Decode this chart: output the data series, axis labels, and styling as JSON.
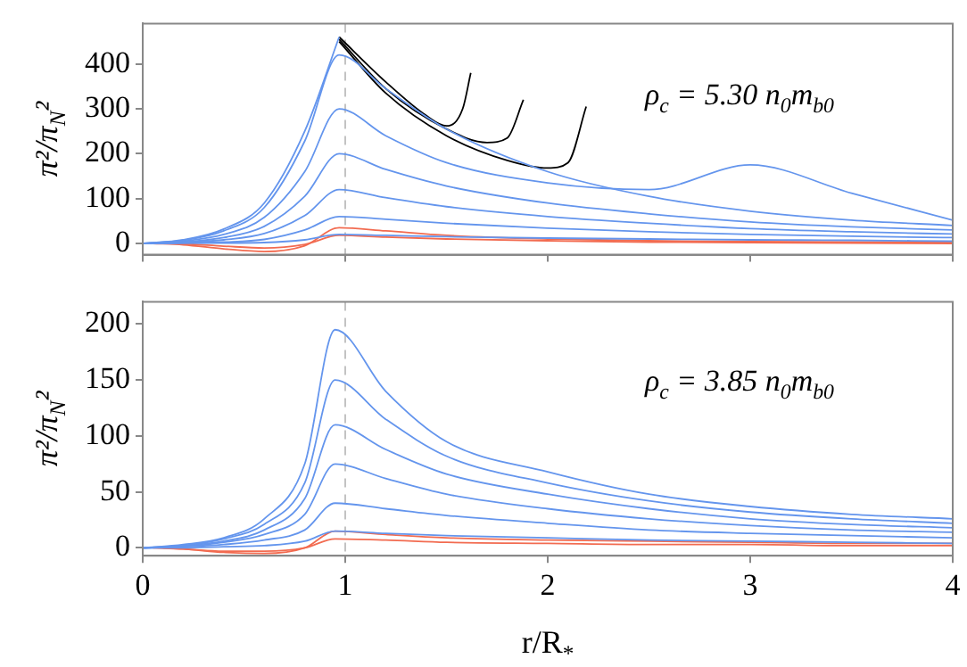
{
  "chart_data": [
    {
      "type": "line",
      "ylabel": "π²/π$_{N}$²",
      "annotations": [
        "ρ$_{c}$ = 5.30 n$_{0}$m$_{b0}$"
      ],
      "xlim": [
        0,
        4
      ],
      "xticks": [
        0,
        1,
        2,
        3,
        4
      ],
      "ylim": [
        -25,
        490
      ],
      "yticks": [
        0,
        100,
        200,
        300,
        400
      ],
      "tick_labels": "y",
      "grid": false,
      "legend": false,
      "marker": "none",
      "line_style": "solid",
      "ref_lines": [
        {
          "axis": "x",
          "value": 1,
          "color": "#aaaaaa",
          "line_style": "dashed"
        }
      ],
      "x": [
        0,
        0.2,
        0.4,
        0.6,
        0.8,
        0.97,
        1.2,
        1.5,
        2,
        2.5,
        3,
        3.5,
        4
      ],
      "series": [
        {
          "color": "#6495ed",
          "values": [
            0,
            1,
            1,
            2,
            8,
            20,
            18,
            15,
            12,
            10,
            8,
            7,
            5
          ]
        },
        {
          "color": "#6495ed",
          "values": [
            0,
            1,
            3,
            9,
            30,
            60,
            54,
            45,
            34,
            26,
            20,
            16,
            13
          ]
        },
        {
          "color": "#6495ed",
          "values": [
            0,
            2,
            8,
            22,
            62,
            120,
            102,
            82,
            60,
            45,
            33,
            26,
            21
          ]
        },
        {
          "color": "#6495ed",
          "values": [
            0,
            3,
            13,
            38,
            105,
            200,
            165,
            128,
            90,
            66,
            48,
            37,
            30
          ]
        },
        {
          "color": "#6495ed",
          "values": [
            0,
            5,
            20,
            58,
            160,
            300,
            240,
            180,
            135,
            120,
            175,
            112,
            52
          ]
        },
        {
          "color": "#6495ed",
          "values": [
            0,
            7,
            28,
            80,
            228,
            420,
            345,
            255,
            160,
            105,
            72,
            52,
            40
          ]
        },
        {
          "color": "#6495ed",
          "values": [
            0,
            8,
            32,
            90,
            250,
            460,
            null,
            null,
            null,
            null,
            null,
            null,
            null
          ]
        },
        {
          "color": "#000000",
          "x": [
            0.97,
            1.2,
            1.4,
            1.5,
            1.58,
            1.62
          ],
          "values": [
            460,
            360,
            285,
            262,
            300,
            380
          ]
        },
        {
          "color": "#000000",
          "x": [
            0.97,
            1.2,
            1.5,
            1.7,
            1.8,
            1.88
          ],
          "values": [
            455,
            345,
            255,
            225,
            235,
            320
          ]
        },
        {
          "color": "#000000",
          "x": [
            0.97,
            1.2,
            1.5,
            1.8,
            2,
            2.1,
            2.19
          ],
          "values": [
            450,
            335,
            240,
            185,
            168,
            180,
            305
          ]
        },
        {
          "color": "#f26b50",
          "x": [
            0.05,
            0.2,
            0.4,
            0.6,
            0.8,
            0.97,
            1.2,
            1.5,
            2,
            2.5,
            3,
            3.5,
            4
          ],
          "values": [
            0,
            -3,
            -12,
            -18,
            -5,
            35,
            28,
            18,
            10,
            6,
            4,
            3,
            2
          ]
        },
        {
          "color": "#f26b50",
          "x": [
            0.1,
            0.2,
            0.4,
            0.6,
            0.8,
            0.97,
            1.2,
            1.5,
            2,
            2.5,
            3,
            3.5,
            4
          ],
          "values": [
            0,
            -1,
            -6,
            -10,
            -2,
            18,
            14,
            10,
            6,
            3,
            2,
            1,
            0
          ]
        }
      ]
    },
    {
      "type": "line",
      "xlabel": "r/R$_{*}$",
      "ylabel": "π²/π$_{N}$²",
      "annotations": [
        "ρ$_{c}$ = 3.85 n$_{0}$m$_{b0}$"
      ],
      "xlim": [
        0,
        4
      ],
      "xticks": [
        0,
        1,
        2,
        3,
        4
      ],
      "ylim": [
        -7,
        220
      ],
      "yticks": [
        0,
        50,
        100,
        150,
        200
      ],
      "grid": false,
      "legend": false,
      "marker": "none",
      "line_style": "solid",
      "ref_lines": [
        {
          "axis": "x",
          "value": 1,
          "color": "#aaaaaa",
          "line_style": "dashed"
        }
      ],
      "x": [
        0,
        0.2,
        0.4,
        0.6,
        0.8,
        0.95,
        1.2,
        1.5,
        2,
        2.5,
        3,
        3.5,
        4
      ],
      "series": [
        {
          "color": "#6495ed",
          "values": [
            0,
            0,
            1,
            2,
            6,
            15,
            13,
            11,
            9,
            7,
            6,
            5,
            4
          ]
        },
        {
          "color": "#6495ed",
          "values": [
            0,
            1,
            3,
            7,
            16,
            40,
            35,
            29,
            22,
            16,
            13,
            11,
            9
          ]
        },
        {
          "color": "#6495ed",
          "values": [
            0,
            1,
            5,
            12,
            30,
            75,
            62,
            48,
            35,
            26,
            20,
            16,
            14
          ]
        },
        {
          "color": "#6495ed",
          "values": [
            0,
            2,
            6,
            16,
            44,
            110,
            88,
            66,
            48,
            35,
            26,
            21,
            18
          ]
        },
        {
          "color": "#6495ed",
          "values": [
            0,
            2,
            8,
            21,
            58,
            150,
            115,
            82,
            58,
            42,
            32,
            26,
            22
          ]
        },
        {
          "color": "#6495ed",
          "values": [
            0,
            3,
            9,
            26,
            75,
            195,
            140,
            95,
            68,
            48,
            37,
            30,
            26
          ]
        },
        {
          "color": "#f26b50",
          "x": [
            0.05,
            0.2,
            0.4,
            0.6,
            0.8,
            0.95,
            1.2,
            1.5,
            2,
            2.5,
            3,
            3.5,
            4
          ],
          "values": [
            0,
            -1,
            -4,
            -5,
            0,
            15,
            12,
            9,
            7,
            6,
            5,
            4,
            4
          ]
        },
        {
          "color": "#f26b50",
          "x": [
            0.1,
            0.2,
            0.4,
            0.6,
            0.8,
            0.95,
            1.2,
            1.5,
            2,
            2.5,
            3,
            3.5,
            4
          ],
          "values": [
            0,
            -1,
            -3,
            -3,
            0,
            8,
            7,
            5,
            4,
            3,
            3,
            2,
            2
          ]
        }
      ]
    }
  ]
}
